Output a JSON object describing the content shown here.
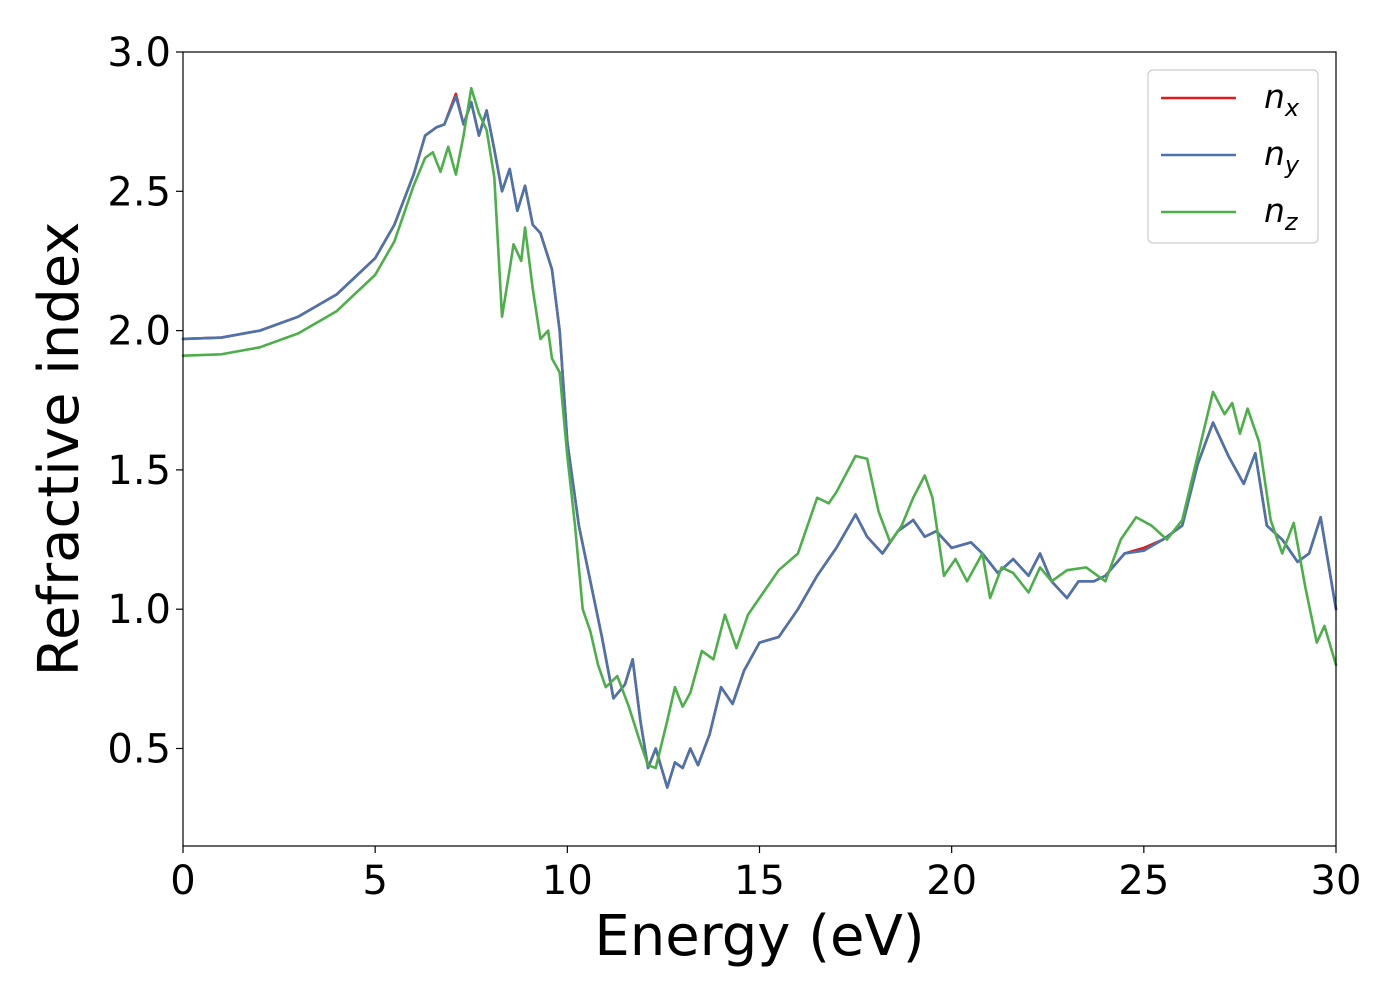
{
  "chart_data": {
    "type": "line",
    "title": "",
    "xlabel": "Energy (eV)",
    "ylabel": "Refractive index",
    "xlim": [
      0,
      30
    ],
    "ylim": [
      0.15,
      3.0
    ],
    "xticks": [
      0,
      5,
      10,
      15,
      20,
      25,
      30
    ],
    "xtick_labels": [
      "0",
      "5",
      "10",
      "15",
      "20",
      "25",
      "30"
    ],
    "yticks": [
      0.5,
      1.0,
      1.5,
      2.0,
      2.5,
      3.0
    ],
    "ytick_labels": [
      "0.5",
      "1.0",
      "1.5",
      "2.0",
      "2.5",
      "3.0"
    ],
    "grid": false,
    "legend_position": "top-right",
    "series": [
      {
        "name": "n_x",
        "label_base": "n",
        "label_sub": "x",
        "color": "#e41a1c",
        "points": [
          [
            0,
            1.97
          ],
          [
            1,
            1.975
          ],
          [
            2,
            2.0
          ],
          [
            3,
            2.05
          ],
          [
            4,
            2.13
          ],
          [
            5,
            2.26
          ],
          [
            5.5,
            2.38
          ],
          [
            6,
            2.56
          ],
          [
            6.3,
            2.7
          ],
          [
            6.6,
            2.73
          ],
          [
            6.8,
            2.74
          ],
          [
            7.1,
            2.85
          ],
          [
            7.3,
            2.74
          ],
          [
            7.5,
            2.82
          ],
          [
            7.7,
            2.7
          ],
          [
            7.9,
            2.79
          ],
          [
            8.1,
            2.65
          ],
          [
            8.3,
            2.5
          ],
          [
            8.5,
            2.58
          ],
          [
            8.7,
            2.43
          ],
          [
            8.9,
            2.52
          ],
          [
            9.1,
            2.38
          ],
          [
            9.3,
            2.35
          ],
          [
            9.6,
            2.22
          ],
          [
            9.8,
            2.0
          ],
          [
            10.0,
            1.6
          ],
          [
            10.3,
            1.3
          ],
          [
            10.6,
            1.1
          ],
          [
            10.9,
            0.9
          ],
          [
            11.2,
            0.68
          ],
          [
            11.5,
            0.73
          ],
          [
            11.7,
            0.82
          ],
          [
            11.9,
            0.6
          ],
          [
            12.1,
            0.43
          ],
          [
            12.3,
            0.5
          ],
          [
            12.6,
            0.36
          ],
          [
            12.8,
            0.45
          ],
          [
            13.0,
            0.43
          ],
          [
            13.2,
            0.5
          ],
          [
            13.4,
            0.44
          ],
          [
            13.7,
            0.55
          ],
          [
            14.0,
            0.72
          ],
          [
            14.3,
            0.66
          ],
          [
            14.6,
            0.78
          ],
          [
            15.0,
            0.88
          ],
          [
            15.5,
            0.9
          ],
          [
            16.0,
            1.0
          ],
          [
            16.5,
            1.12
          ],
          [
            17.0,
            1.22
          ],
          [
            17.5,
            1.34
          ],
          [
            17.8,
            1.26
          ],
          [
            18.2,
            1.2
          ],
          [
            18.6,
            1.28
          ],
          [
            19.0,
            1.32
          ],
          [
            19.3,
            1.26
          ],
          [
            19.6,
            1.28
          ],
          [
            20.0,
            1.22
          ],
          [
            20.5,
            1.24
          ],
          [
            20.8,
            1.2
          ],
          [
            21.2,
            1.13
          ],
          [
            21.6,
            1.18
          ],
          [
            22.0,
            1.12
          ],
          [
            22.3,
            1.2
          ],
          [
            22.6,
            1.1
          ],
          [
            23.0,
            1.04
          ],
          [
            23.3,
            1.1
          ],
          [
            23.7,
            1.1
          ],
          [
            24.0,
            1.12
          ],
          [
            24.5,
            1.2
          ],
          [
            25.0,
            1.22
          ],
          [
            25.5,
            1.25
          ],
          [
            26.0,
            1.3
          ],
          [
            26.4,
            1.52
          ],
          [
            26.8,
            1.67
          ],
          [
            27.2,
            1.55
          ],
          [
            27.6,
            1.45
          ],
          [
            27.9,
            1.56
          ],
          [
            28.2,
            1.3
          ],
          [
            28.6,
            1.25
          ],
          [
            29.0,
            1.17
          ],
          [
            29.3,
            1.2
          ],
          [
            29.6,
            1.33
          ],
          [
            30.0,
            1.0
          ]
        ]
      },
      {
        "name": "n_y",
        "label_base": "n",
        "label_sub": "y",
        "color": "#4a74ad",
        "points": [
          [
            0,
            1.97
          ],
          [
            1,
            1.975
          ],
          [
            2,
            2.0
          ],
          [
            3,
            2.05
          ],
          [
            4,
            2.13
          ],
          [
            5,
            2.26
          ],
          [
            5.5,
            2.38
          ],
          [
            6,
            2.56
          ],
          [
            6.3,
            2.7
          ],
          [
            6.6,
            2.73
          ],
          [
            6.8,
            2.74
          ],
          [
            7.1,
            2.84
          ],
          [
            7.3,
            2.74
          ],
          [
            7.5,
            2.82
          ],
          [
            7.7,
            2.7
          ],
          [
            7.9,
            2.79
          ],
          [
            8.1,
            2.65
          ],
          [
            8.3,
            2.5
          ],
          [
            8.5,
            2.58
          ],
          [
            8.7,
            2.43
          ],
          [
            8.9,
            2.52
          ],
          [
            9.1,
            2.38
          ],
          [
            9.3,
            2.35
          ],
          [
            9.6,
            2.22
          ],
          [
            9.8,
            2.0
          ],
          [
            10.0,
            1.6
          ],
          [
            10.3,
            1.3
          ],
          [
            10.6,
            1.1
          ],
          [
            10.9,
            0.9
          ],
          [
            11.2,
            0.68
          ],
          [
            11.5,
            0.73
          ],
          [
            11.7,
            0.82
          ],
          [
            11.9,
            0.6
          ],
          [
            12.1,
            0.43
          ],
          [
            12.3,
            0.5
          ],
          [
            12.6,
            0.36
          ],
          [
            12.8,
            0.45
          ],
          [
            13.0,
            0.43
          ],
          [
            13.2,
            0.5
          ],
          [
            13.4,
            0.44
          ],
          [
            13.7,
            0.55
          ],
          [
            14.0,
            0.72
          ],
          [
            14.3,
            0.66
          ],
          [
            14.6,
            0.78
          ],
          [
            15.0,
            0.88
          ],
          [
            15.5,
            0.9
          ],
          [
            16.0,
            1.0
          ],
          [
            16.5,
            1.12
          ],
          [
            17.0,
            1.22
          ],
          [
            17.5,
            1.34
          ],
          [
            17.8,
            1.26
          ],
          [
            18.2,
            1.2
          ],
          [
            18.6,
            1.28
          ],
          [
            19.0,
            1.32
          ],
          [
            19.3,
            1.26
          ],
          [
            19.6,
            1.28
          ],
          [
            20.0,
            1.22
          ],
          [
            20.5,
            1.24
          ],
          [
            20.8,
            1.2
          ],
          [
            21.2,
            1.13
          ],
          [
            21.6,
            1.18
          ],
          [
            22.0,
            1.12
          ],
          [
            22.3,
            1.2
          ],
          [
            22.6,
            1.1
          ],
          [
            23.0,
            1.04
          ],
          [
            23.3,
            1.1
          ],
          [
            23.7,
            1.1
          ],
          [
            24.0,
            1.12
          ],
          [
            24.5,
            1.2
          ],
          [
            25.0,
            1.21
          ],
          [
            25.5,
            1.25
          ],
          [
            26.0,
            1.3
          ],
          [
            26.4,
            1.52
          ],
          [
            26.8,
            1.67
          ],
          [
            27.2,
            1.55
          ],
          [
            27.6,
            1.45
          ],
          [
            27.9,
            1.56
          ],
          [
            28.2,
            1.3
          ],
          [
            28.6,
            1.25
          ],
          [
            29.0,
            1.17
          ],
          [
            29.3,
            1.2
          ],
          [
            29.6,
            1.33
          ],
          [
            30.0,
            1.0
          ]
        ]
      },
      {
        "name": "n_z",
        "label_base": "n",
        "label_sub": "z",
        "color": "#4daf4a",
        "points": [
          [
            0,
            1.91
          ],
          [
            1,
            1.915
          ],
          [
            2,
            1.94
          ],
          [
            3,
            1.99
          ],
          [
            4,
            2.07
          ],
          [
            5,
            2.2
          ],
          [
            5.5,
            2.32
          ],
          [
            6,
            2.52
          ],
          [
            6.3,
            2.62
          ],
          [
            6.5,
            2.64
          ],
          [
            6.7,
            2.57
          ],
          [
            6.9,
            2.66
          ],
          [
            7.1,
            2.56
          ],
          [
            7.3,
            2.7
          ],
          [
            7.5,
            2.87
          ],
          [
            7.7,
            2.78
          ],
          [
            7.9,
            2.72
          ],
          [
            8.1,
            2.55
          ],
          [
            8.2,
            2.3
          ],
          [
            8.3,
            2.05
          ],
          [
            8.5,
            2.22
          ],
          [
            8.6,
            2.31
          ],
          [
            8.8,
            2.25
          ],
          [
            8.9,
            2.37
          ],
          [
            9.1,
            2.15
          ],
          [
            9.3,
            1.97
          ],
          [
            9.5,
            2.0
          ],
          [
            9.6,
            1.9
          ],
          [
            9.8,
            1.85
          ],
          [
            10.0,
            1.55
          ],
          [
            10.2,
            1.3
          ],
          [
            10.4,
            1.0
          ],
          [
            10.6,
            0.92
          ],
          [
            10.8,
            0.8
          ],
          [
            11.0,
            0.72
          ],
          [
            11.3,
            0.76
          ],
          [
            11.6,
            0.65
          ],
          [
            11.9,
            0.52
          ],
          [
            12.1,
            0.44
          ],
          [
            12.3,
            0.43
          ],
          [
            12.6,
            0.6
          ],
          [
            12.8,
            0.72
          ],
          [
            13.0,
            0.65
          ],
          [
            13.2,
            0.7
          ],
          [
            13.5,
            0.85
          ],
          [
            13.8,
            0.82
          ],
          [
            14.1,
            0.98
          ],
          [
            14.4,
            0.86
          ],
          [
            14.7,
            0.98
          ],
          [
            15.0,
            1.04
          ],
          [
            15.5,
            1.14
          ],
          [
            16.0,
            1.2
          ],
          [
            16.5,
            1.4
          ],
          [
            16.8,
            1.38
          ],
          [
            17.0,
            1.42
          ],
          [
            17.5,
            1.55
          ],
          [
            17.8,
            1.54
          ],
          [
            18.1,
            1.35
          ],
          [
            18.4,
            1.24
          ],
          [
            18.7,
            1.3
          ],
          [
            19.0,
            1.4
          ],
          [
            19.3,
            1.48
          ],
          [
            19.5,
            1.4
          ],
          [
            19.8,
            1.12
          ],
          [
            20.1,
            1.18
          ],
          [
            20.4,
            1.1
          ],
          [
            20.8,
            1.2
          ],
          [
            21.0,
            1.04
          ],
          [
            21.3,
            1.15
          ],
          [
            21.6,
            1.13
          ],
          [
            22.0,
            1.06
          ],
          [
            22.3,
            1.15
          ],
          [
            22.6,
            1.1
          ],
          [
            23.0,
            1.14
          ],
          [
            23.5,
            1.15
          ],
          [
            24.0,
            1.1
          ],
          [
            24.4,
            1.25
          ],
          [
            24.8,
            1.33
          ],
          [
            25.2,
            1.3
          ],
          [
            25.6,
            1.25
          ],
          [
            26.0,
            1.32
          ],
          [
            26.4,
            1.55
          ],
          [
            26.8,
            1.78
          ],
          [
            27.1,
            1.7
          ],
          [
            27.3,
            1.74
          ],
          [
            27.5,
            1.63
          ],
          [
            27.7,
            1.72
          ],
          [
            28.0,
            1.6
          ],
          [
            28.3,
            1.32
          ],
          [
            28.6,
            1.2
          ],
          [
            28.9,
            1.31
          ],
          [
            29.2,
            1.08
          ],
          [
            29.5,
            0.88
          ],
          [
            29.7,
            0.94
          ],
          [
            30.0,
            0.8
          ]
        ]
      }
    ]
  }
}
